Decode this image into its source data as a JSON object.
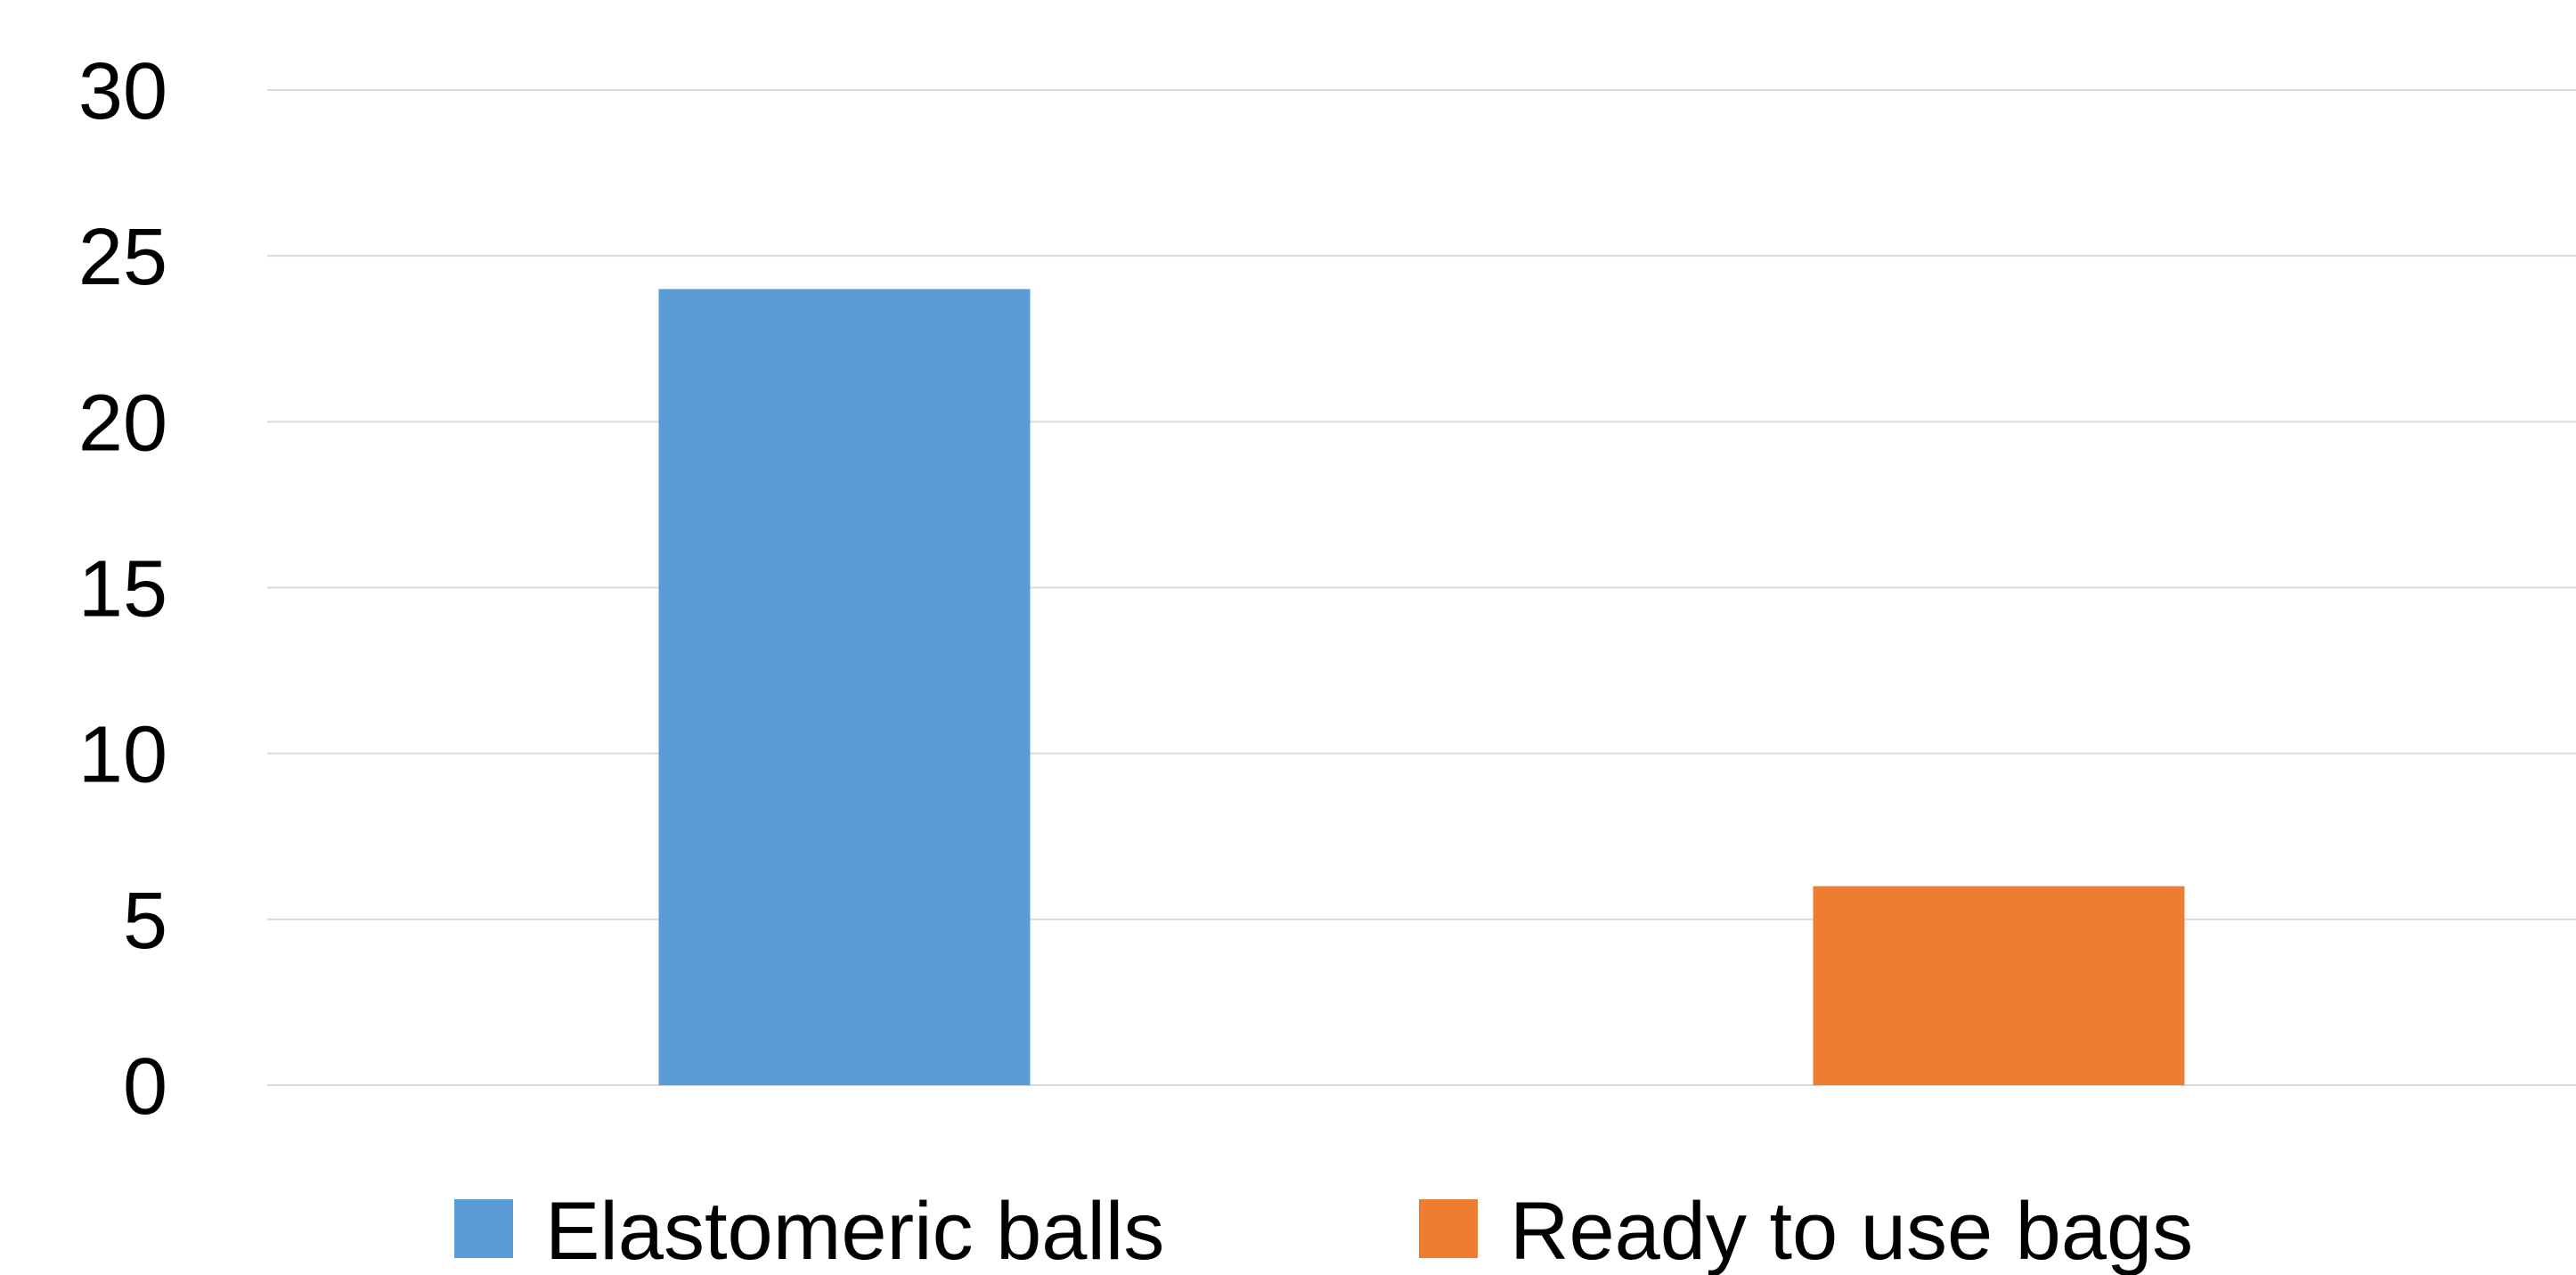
{
  "chart_data": {
    "type": "bar",
    "title": "",
    "xlabel": "",
    "ylabel": "",
    "ylim": [
      0,
      30
    ],
    "yticks": [
      0,
      5,
      10,
      15,
      20,
      25,
      30
    ],
    "grid": true,
    "legend_position": "bottom",
    "categories": [
      "Elastomeric balls",
      "Ready to use bags"
    ],
    "series": [
      {
        "name": "Elastomeric balls",
        "color": "#5b9bd5",
        "values": [
          24,
          null
        ]
      },
      {
        "name": "Ready to use bags",
        "color": "#ed7d31",
        "values": [
          null,
          6
        ]
      }
    ]
  }
}
